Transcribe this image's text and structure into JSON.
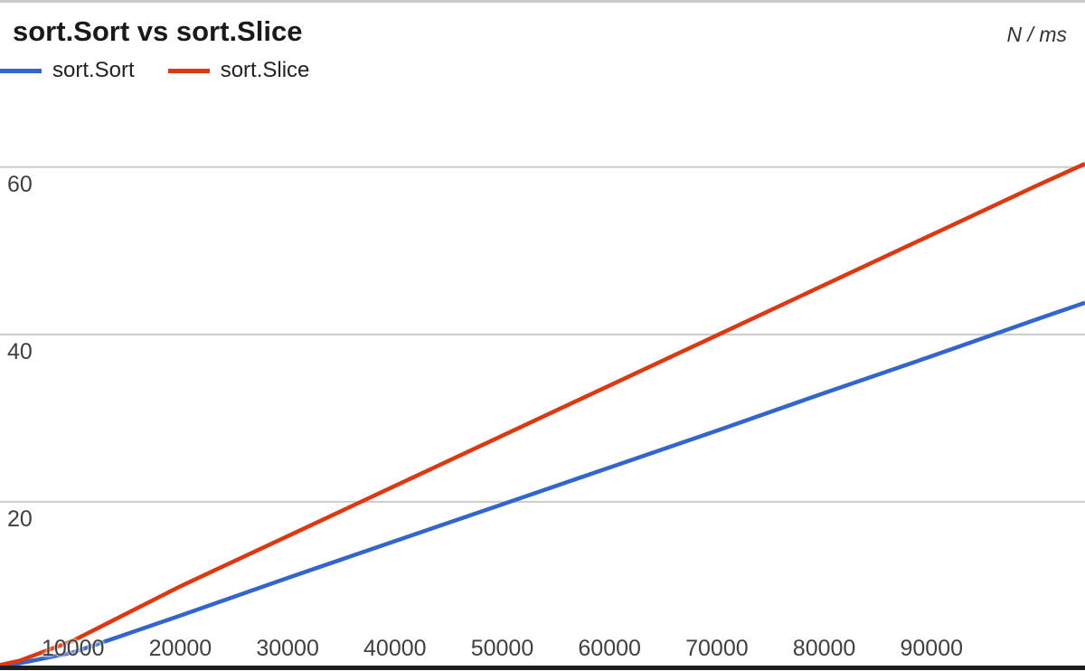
{
  "header": {
    "title": "sort.Sort vs sort.Slice",
    "units_label": "N / ms"
  },
  "legend": {
    "items": [
      {
        "label": "sort.Sort",
        "color": "#3366cc"
      },
      {
        "label": "sort.Slice",
        "color": "#dc3912"
      }
    ]
  },
  "chart_data": {
    "type": "line",
    "title": "sort.Sort vs sort.Slice",
    "units": "N / ms",
    "xlabel": "N",
    "ylabel": "ms",
    "xlim": [
      3200,
      104300
    ],
    "ylim": [
      0,
      69.7
    ],
    "x_ticks": [
      10000,
      20000,
      30000,
      40000,
      50000,
      60000,
      70000,
      80000,
      90000
    ],
    "y_ticks": [
      20,
      40,
      60
    ],
    "grid": "horizontal-only",
    "legend_position": "top-left",
    "x": [
      3200,
      5000,
      10000,
      20000,
      30000,
      40000,
      50000,
      60000,
      70000,
      80000,
      90000,
      100000,
      104300
    ],
    "series": [
      {
        "name": "sort.Sort",
        "color": "#3366cc",
        "values": [
          0.3,
          0.7,
          2.0,
          6.4,
          10.9,
          15.3,
          19.7,
          24.1,
          28.5,
          33.0,
          37.4,
          41.9,
          43.8
        ]
      },
      {
        "name": "sort.Slice",
        "color": "#dc3912",
        "values": [
          0.5,
          1.0,
          3.4,
          9.9,
          15.9,
          21.9,
          27.9,
          33.9,
          39.9,
          45.9,
          51.9,
          57.9,
          60.4
        ]
      }
    ],
    "colors": {
      "gridline": "#cccccc",
      "axis_line": "#1f1f1f",
      "tick_text": "#404040",
      "top_border": "#c9c9c9"
    }
  }
}
